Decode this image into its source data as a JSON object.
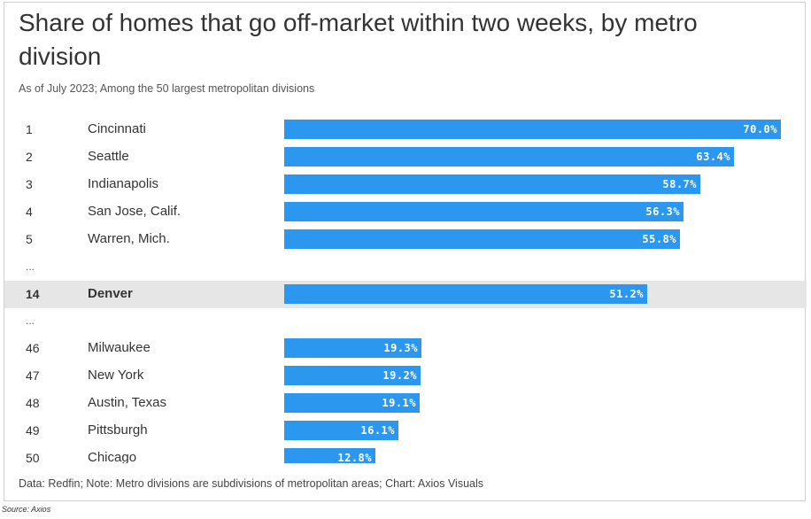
{
  "title": "Share of homes that go off-market within two weeks, by metro division",
  "subtitle": "As of July 2023; Among the 50 largest metropolitan divisions",
  "footer": "Data: Redfin; Note: Metro divisions are subdivisions of metropolitan areas; Chart: Axios Visuals",
  "source": "Source: Axios",
  "ellipsis": "...",
  "colors": {
    "bar": "#2b97ee",
    "highlight_row": "#e6e6e6"
  },
  "chart_data": {
    "type": "bar",
    "orientation": "horizontal",
    "title": "Share of homes that go off-market within two weeks, by metro division",
    "xlim": [
      0,
      70
    ],
    "highlight": "Denver",
    "rows": [
      {
        "rank": "1",
        "name": "Cincinnati",
        "value": 70.0,
        "label": "70.0%"
      },
      {
        "rank": "2",
        "name": "Seattle",
        "value": 63.4,
        "label": "63.4%"
      },
      {
        "rank": "3",
        "name": "Indianapolis",
        "value": 58.7,
        "label": "58.7%"
      },
      {
        "rank": "4",
        "name": "San Jose, Calif.",
        "value": 56.3,
        "label": "56.3%"
      },
      {
        "rank": "5",
        "name": "Warren, Mich.",
        "value": 55.8,
        "label": "55.8%"
      },
      {
        "rank": "14",
        "name": "Denver",
        "value": 51.2,
        "label": "51.2%"
      },
      {
        "rank": "46",
        "name": "Milwaukee",
        "value": 19.3,
        "label": "19.3%"
      },
      {
        "rank": "47",
        "name": "New York",
        "value": 19.2,
        "label": "19.2%"
      },
      {
        "rank": "48",
        "name": "Austin, Texas",
        "value": 19.1,
        "label": "19.1%"
      },
      {
        "rank": "49",
        "name": "Pittsburgh",
        "value": 16.1,
        "label": "16.1%"
      },
      {
        "rank": "50",
        "name": "Chicago",
        "value": 12.8,
        "label": "12.8%"
      }
    ]
  }
}
